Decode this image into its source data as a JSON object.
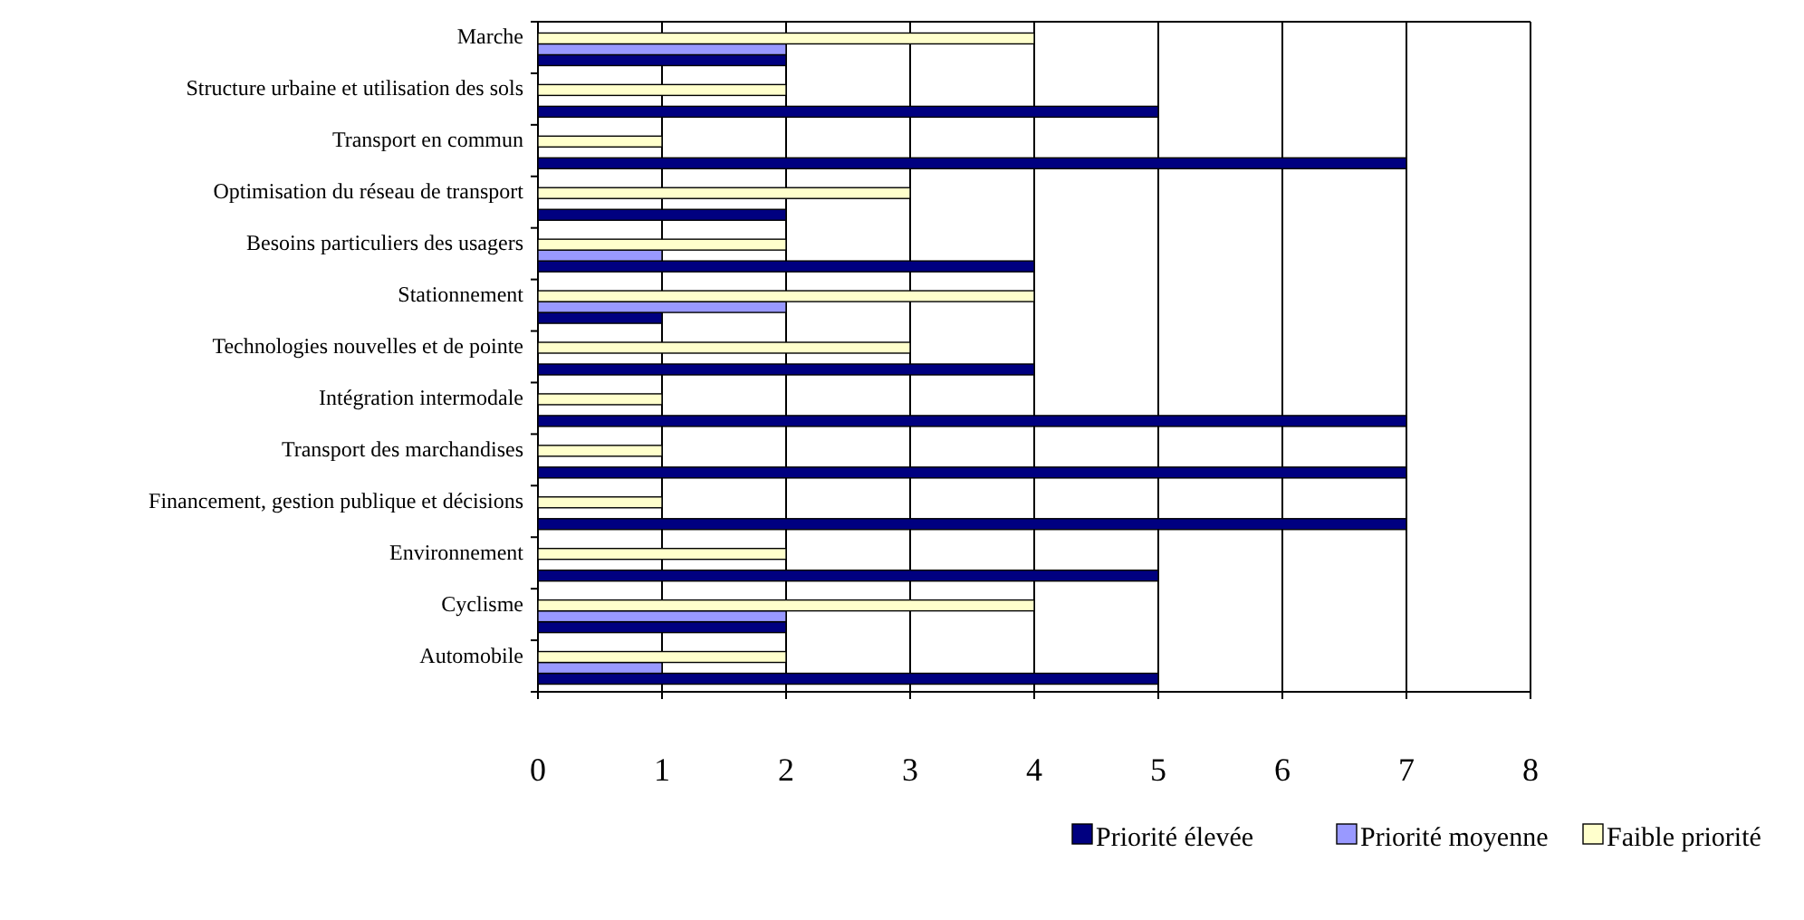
{
  "chart_data": {
    "type": "bar",
    "orientation": "horizontal",
    "categories": [
      "Marche",
      "Structure urbaine et utilisation des sols",
      "Transport en commun",
      "Optimisation du réseau de transport",
      "Besoins particuliers des usagers",
      "Stationnement",
      "Technologies nouvelles et de pointe",
      "Intégration intermodale",
      "Transport des marchandises",
      "Financement, gestion publique et décisions",
      "Environnement",
      "Cyclisme",
      "Automobile"
    ],
    "series": [
      {
        "name": "Priorité élevée",
        "color": "#000080",
        "values": [
          2,
          5,
          7,
          2,
          4,
          1,
          4,
          7,
          7,
          7,
          5,
          2,
          5
        ]
      },
      {
        "name": "Priorité moyenne",
        "color": "#9999ff",
        "values": [
          2,
          null,
          null,
          null,
          1,
          2,
          null,
          null,
          null,
          null,
          null,
          2,
          1
        ]
      },
      {
        "name": "Faible priorité",
        "color": "#ffffcc",
        "values": [
          4,
          2,
          1,
          3,
          2,
          4,
          3,
          1,
          1,
          1,
          2,
          4,
          2
        ]
      }
    ],
    "xlim": [
      0,
      8
    ],
    "xticks": [
      0,
      1,
      2,
      3,
      4,
      5,
      6,
      7,
      8
    ],
    "grid": "x",
    "legend": "bottom right"
  }
}
